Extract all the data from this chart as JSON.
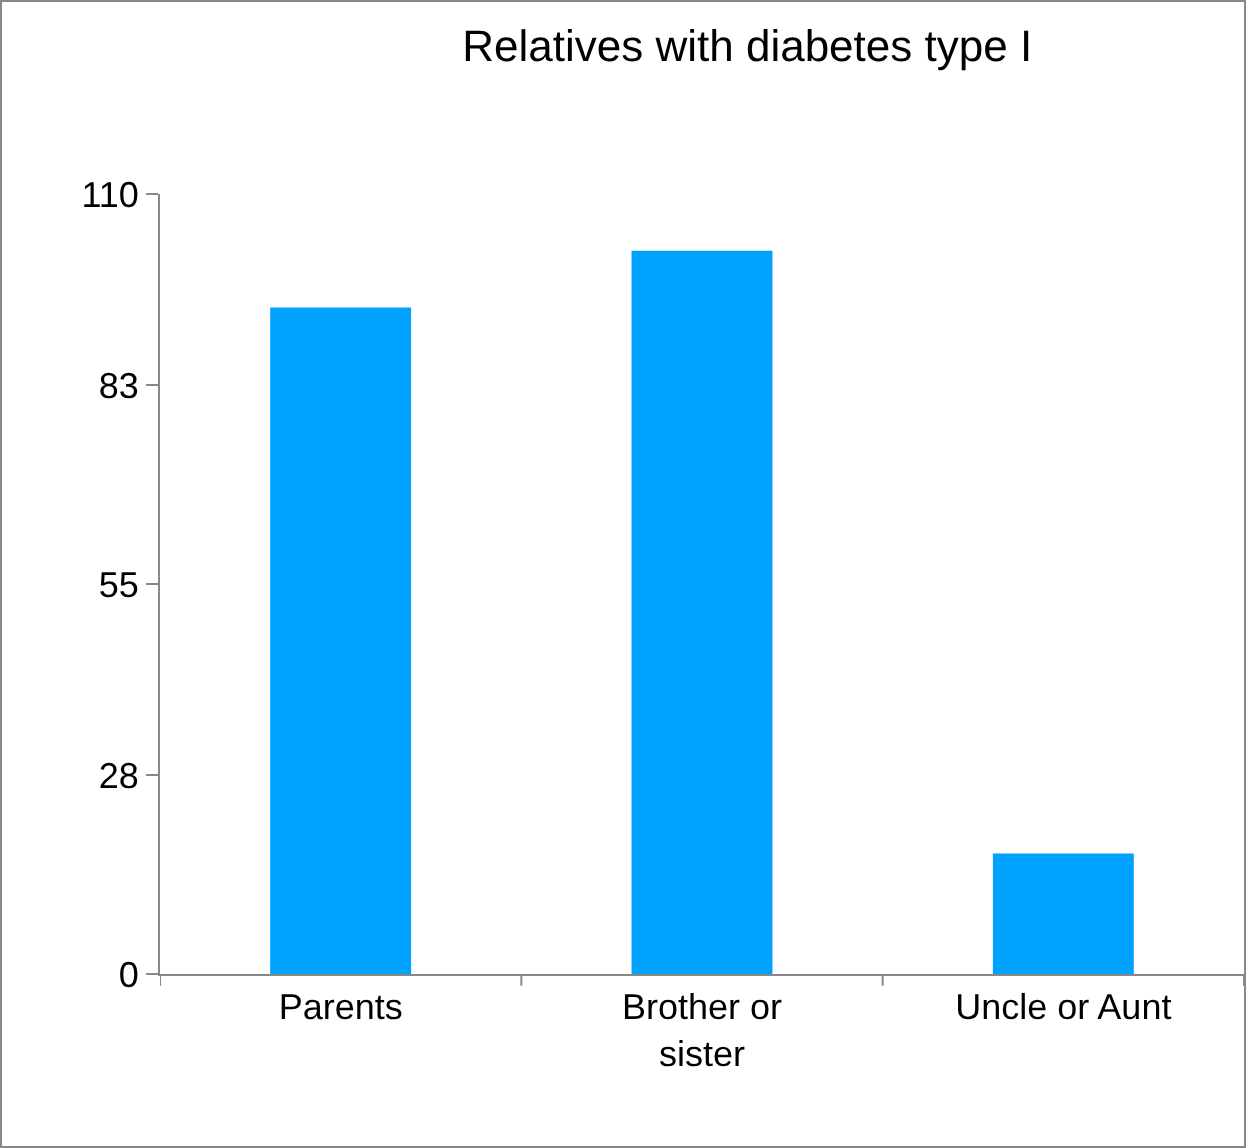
{
  "chart_data": {
    "type": "bar",
    "title": "Relatives with diabetes type I",
    "categories": [
      "Parents",
      "Brother or sister",
      "Uncle or Aunt"
    ],
    "values": [
      94,
      102,
      17
    ],
    "color": "#00a2ff",
    "ylim": [
      0,
      110
    ],
    "yticks": [
      0,
      28,
      55,
      83,
      110
    ]
  }
}
